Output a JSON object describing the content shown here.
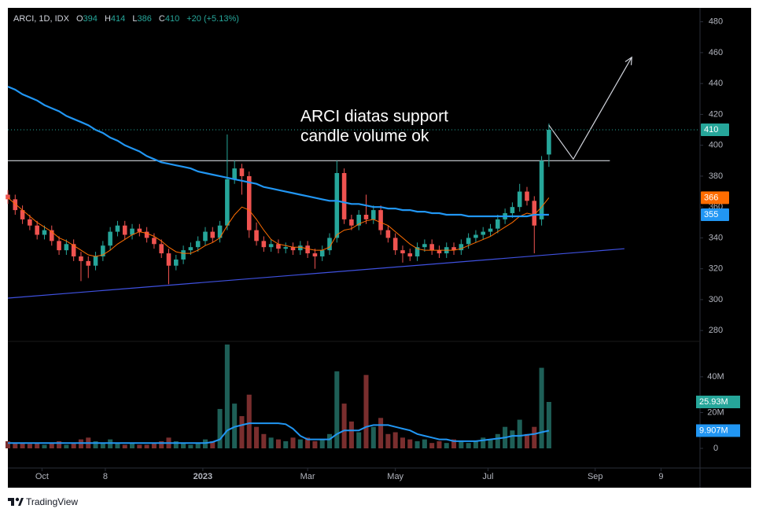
{
  "chart_data": {
    "type": "candlestick",
    "header": {
      "symbol": "ARCI, 1D, IDX",
      "open_label": "O",
      "open": 394,
      "high_label": "H",
      "high": 414,
      "low_label": "L",
      "low": 386,
      "close_label": "C",
      "close": 410,
      "change": "+20 (+5.13%)"
    },
    "annotation": [
      "ARCI diatas support",
      "candle volume ok"
    ],
    "footer": "TradingView",
    "up_color": "#26a69a",
    "down_color": "#ef5350",
    "x": [
      0,
      3,
      6,
      9,
      12,
      15,
      18,
      21,
      24,
      27,
      30,
      33,
      36,
      39,
      42,
      45,
      48,
      51,
      54,
      57,
      60,
      63,
      66,
      69,
      72,
      75,
      78,
      81,
      84,
      87,
      90,
      93,
      96,
      99,
      102,
      105,
      108,
      111,
      114,
      117,
      120,
      123,
      126,
      129,
      132,
      135,
      138,
      141,
      144,
      147,
      150,
      153,
      156,
      159,
      162,
      165,
      168,
      171,
      174,
      177,
      180,
      183,
      186,
      189,
      192,
      195,
      198,
      201,
      204,
      207,
      210,
      213,
      216,
      219,
      222
    ],
    "open": [
      368,
      365,
      358,
      352,
      348,
      342,
      345,
      338,
      332,
      336,
      328,
      325,
      322,
      328,
      335,
      344,
      348,
      342,
      346,
      344,
      340,
      336,
      330,
      322,
      326,
      332,
      334,
      338,
      344,
      340,
      348,
      378,
      385,
      380,
      345,
      338,
      334,
      336,
      333,
      334,
      332,
      335,
      330,
      328,
      332,
      340,
      382,
      352,
      348,
      355,
      352,
      358,
      345,
      340,
      332,
      330,
      328,
      334,
      336,
      332,
      330,
      334,
      332,
      336,
      340,
      342,
      344,
      346,
      352,
      356,
      360,
      370,
      364,
      352,
      394
    ],
    "high": [
      371,
      368,
      361,
      355,
      351,
      348,
      348,
      341,
      339,
      339,
      331,
      328,
      331,
      338,
      347,
      351,
      351,
      349,
      349,
      347,
      343,
      339,
      333,
      329,
      335,
      337,
      341,
      347,
      347,
      351,
      407,
      390,
      388,
      383,
      350,
      341,
      339,
      339,
      337,
      337,
      338,
      338,
      333,
      335,
      343,
      390,
      385,
      355,
      358,
      368,
      361,
      361,
      348,
      343,
      335,
      333,
      337,
      339,
      339,
      335,
      337,
      337,
      339,
      343,
      345,
      347,
      349,
      355,
      359,
      363,
      375,
      373,
      367,
      393,
      414
    ],
    "low": [
      362,
      355,
      349,
      345,
      339,
      339,
      335,
      329,
      329,
      325,
      312,
      314,
      319,
      325,
      332,
      341,
      339,
      339,
      341,
      337,
      333,
      327,
      310,
      319,
      323,
      329,
      331,
      335,
      337,
      337,
      345,
      375,
      368,
      340,
      335,
      331,
      331,
      330,
      330,
      329,
      329,
      327,
      320,
      325,
      329,
      337,
      349,
      345,
      345,
      349,
      349,
      342,
      337,
      329,
      324,
      325,
      325,
      331,
      329,
      327,
      327,
      329,
      329,
      333,
      337,
      339,
      341,
      343,
      349,
      353,
      357,
      361,
      330,
      348,
      386
    ],
    "close": [
      365,
      358,
      352,
      348,
      342,
      345,
      338,
      332,
      336,
      328,
      325,
      322,
      328,
      335,
      344,
      348,
      342,
      346,
      344,
      340,
      336,
      330,
      322,
      326,
      332,
      334,
      338,
      344,
      340,
      348,
      378,
      385,
      380,
      345,
      338,
      334,
      336,
      333,
      334,
      332,
      335,
      330,
      328,
      332,
      340,
      382,
      352,
      348,
      355,
      352,
      358,
      345,
      340,
      332,
      330,
      328,
      334,
      336,
      332,
      330,
      334,
      332,
      336,
      340,
      342,
      344,
      346,
      352,
      356,
      360,
      370,
      364,
      348,
      390,
      410
    ],
    "overlays": [
      {
        "color": "#ff6d00",
        "values": [
          366,
          362,
          358,
          354,
          350,
          347,
          344,
          340,
          338,
          335,
          332,
          329,
          328,
          329,
          332,
          336,
          339,
          342,
          344,
          343,
          341,
          338,
          334,
          331,
          330,
          330,
          332,
          335,
          337,
          340,
          348,
          355,
          360,
          358,
          352,
          345,
          339,
          336,
          335,
          334,
          334,
          333,
          332,
          332,
          334,
          342,
          345,
          346,
          349,
          351,
          352,
          350,
          348,
          344,
          340,
          336,
          333,
          332,
          332,
          332,
          332,
          332,
          333,
          335,
          337,
          339,
          341,
          344,
          347,
          350,
          354,
          356,
          355,
          360,
          366
        ]
      },
      {
        "color": "#2196f3",
        "values": [
          438,
          436,
          433,
          431,
          429,
          426,
          424,
          422,
          419,
          417,
          415,
          413,
          410,
          408,
          405,
          403,
          400,
          398,
          396,
          393,
          391,
          389,
          388,
          387,
          386,
          385,
          383,
          382,
          381,
          380,
          379,
          378,
          377,
          376,
          375,
          373,
          372,
          371,
          370,
          369,
          368,
          367,
          366,
          365,
          364,
          364,
          363,
          362,
          362,
          361,
          360,
          360,
          359,
          359,
          358,
          358,
          357,
          357,
          356,
          356,
          355,
          355,
          355,
          354,
          354,
          354,
          354,
          354,
          354,
          354,
          354,
          354,
          355,
          355,
          355
        ]
      }
    ],
    "xlim": [
      0,
      284
    ],
    "xticks": [
      {
        "value": 14,
        "label": "Oct"
      },
      {
        "value": 40,
        "label": "8"
      },
      {
        "value": 80,
        "label": "2023"
      },
      {
        "value": 123,
        "label": "Mar"
      },
      {
        "value": 159,
        "label": "May"
      },
      {
        "value": 197,
        "label": "Jul"
      },
      {
        "value": 241,
        "label": "Sep"
      },
      {
        "value": 268,
        "label": "9"
      }
    ],
    "ylim": [
      275,
      489
    ],
    "yticks": [
      280,
      300,
      320,
      340,
      360,
      380,
      400,
      420,
      440,
      460,
      480
    ],
    "volume": {
      "up_color": "#1e5f57",
      "down_color": "#7a2e2e",
      "values": [
        4000000,
        3000000,
        3000000,
        2500000,
        3000000,
        2000000,
        3000000,
        4000000,
        2000000,
        3000000,
        5000000,
        6000000,
        4000000,
        3000000,
        5000000,
        3000000,
        2000000,
        3000000,
        2000000,
        2000000,
        3000000,
        4000000,
        6000000,
        4000000,
        3000000,
        2000000,
        3000000,
        5000000,
        4000000,
        22000000,
        58000000,
        25000000,
        18000000,
        30000000,
        12000000,
        8000000,
        6000000,
        5000000,
        4000000,
        6000000,
        5000000,
        6000000,
        4000000,
        5000000,
        8000000,
        43000000,
        25000000,
        15000000,
        9000000,
        41000000,
        12000000,
        17000000,
        8000000,
        9000000,
        6000000,
        5000000,
        4000000,
        5000000,
        3000000,
        4000000,
        3000000,
        5000000,
        4000000,
        3000000,
        4000000,
        6000000,
        5000000,
        8000000,
        12000000,
        10000000,
        16000000,
        8000000,
        12000000,
        45000000,
        25930000
      ],
      "last_label": "25.93M",
      "ylim": [
        0,
        58000000
      ],
      "yticks": [
        0,
        {
          "value": 20000000,
          "label": "20M"
        },
        {
          "value": 40000000,
          "label": "40M"
        }
      ],
      "ma": {
        "color": "#2196f3",
        "last_label": "9.907M",
        "values": [
          3000000,
          3000000,
          3000000,
          3000000,
          3000000,
          3000000,
          3000000,
          3000000,
          3000000,
          3000000,
          3000000,
          3000000,
          3000000,
          3000000,
          3000000,
          3000000,
          3000000,
          3000000,
          3000000,
          3000000,
          3000000,
          3000000,
          3000000,
          3000000,
          3000000,
          3000000,
          3000000,
          3000000,
          3500000,
          5000000,
          10000000,
          12000000,
          13000000,
          14000000,
          14000000,
          14000000,
          14000000,
          14000000,
          13500000,
          11000000,
          7000000,
          5000000,
          5000000,
          5000000,
          5000000,
          8000000,
          10000000,
          10000000,
          10000000,
          12000000,
          13000000,
          13000000,
          13000000,
          12000000,
          11000000,
          10000000,
          8000000,
          7000000,
          6000000,
          5000000,
          5000000,
          4000000,
          4000000,
          4000000,
          4000000,
          4500000,
          5000000,
          5500000,
          6000000,
          7000000,
          7000000,
          7500000,
          8000000,
          9000000,
          9907000
        ]
      }
    },
    "drawings": {
      "hline": {
        "value": 390,
        "x": [
          0,
          247
        ],
        "color": "#d1d4dc"
      },
      "trendline": {
        "x": [
          0,
          253
        ],
        "y": [
          301,
          333
        ],
        "color": "#3f51e0"
      },
      "arrow": {
        "x": [
          222,
          232,
          256
        ],
        "y": [
          413,
          391,
          457
        ],
        "color": "#d1d4dc"
      }
    }
  }
}
